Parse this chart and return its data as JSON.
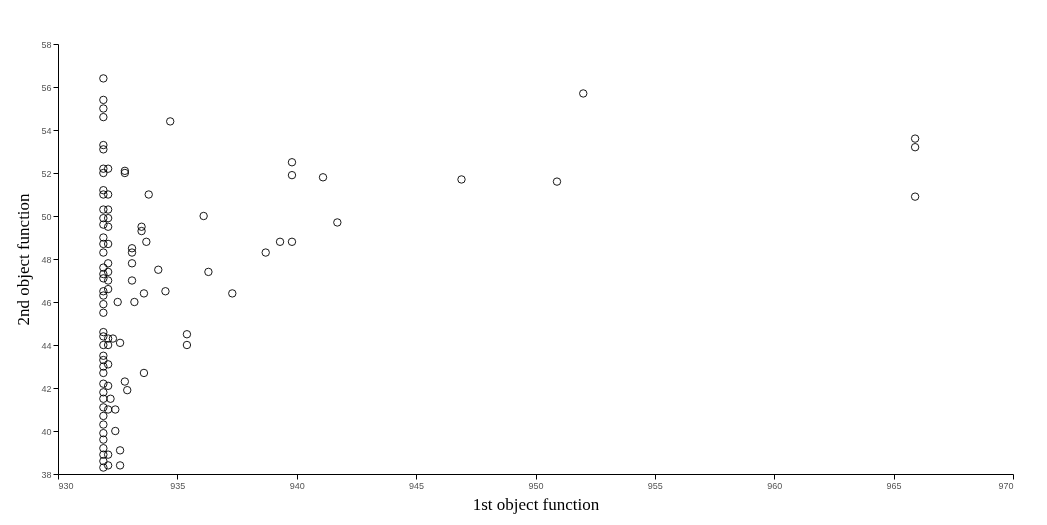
{
  "chart_data": {
    "type": "scatter",
    "xlabel": "1st object function",
    "ylabel": "2nd object function",
    "xlim": [
      930,
      970
    ],
    "xticks": [
      930,
      935,
      940,
      945,
      950,
      955,
      960,
      965,
      970
    ],
    "ylim": [
      38,
      58
    ],
    "yticks": [
      38,
      40,
      42,
      44,
      46,
      48,
      50,
      52,
      54,
      56,
      58
    ],
    "grid": false,
    "marker": "circle",
    "series": [
      {
        "color": "#000000",
        "x": [
          965.9,
          965.9,
          965.9,
          952.0,
          950.9,
          946.9,
          941.1,
          941.7,
          939.8,
          939.8,
          939.8,
          939.3,
          938.7,
          937.3,
          936.3,
          936.1,
          935.4,
          935.4,
          934.7,
          934.5,
          934.2,
          933.8,
          933.7,
          933.6,
          933.5,
          933.5,
          933.6,
          933.1,
          933.1,
          933.1,
          933.1,
          933.2,
          932.9,
          932.8,
          932.8,
          932.8,
          932.6,
          932.6,
          932.6,
          932.5,
          932.4,
          932.4,
          932.3,
          932.2,
          931.9,
          931.9,
          931.9,
          931.9,
          931.9,
          931.9,
          931.9,
          931.9,
          931.9,
          931.9,
          931.9,
          931.9,
          931.9,
          931.9,
          931.9,
          931.9,
          931.9,
          931.9,
          931.9,
          931.9,
          931.9,
          931.9,
          931.9,
          931.9,
          931.9,
          931.9,
          931.9,
          931.9,
          931.9,
          931.9,
          931.9,
          931.9,
          931.9,
          931.9,
          931.9,
          931.9,
          931.9,
          931.9,
          931.9,
          931.9,
          931.9,
          931.9,
          932.1,
          932.1,
          932.1,
          932.1,
          932.1,
          932.1,
          932.1,
          932.1,
          932.1,
          932.1,
          932.1,
          932.1,
          932.1,
          932.1,
          932.1,
          932.1,
          932.1
        ],
        "values": [
          53.6,
          53.2,
          50.9,
          55.7,
          51.6,
          51.7,
          51.8,
          49.7,
          52.5,
          51.9,
          48.8,
          48.8,
          48.3,
          46.4,
          47.4,
          50.0,
          44.5,
          44.0,
          54.4,
          46.5,
          47.5,
          51.0,
          48.8,
          46.4,
          49.3,
          49.5,
          42.7,
          48.5,
          48.3,
          47.8,
          47.0,
          46.0,
          41.9,
          42.3,
          52.0,
          52.1,
          44.1,
          39.1,
          38.4,
          46.0,
          41.0,
          40.0,
          44.3,
          41.5,
          56.4,
          55.4,
          55.0,
          54.6,
          53.3,
          53.1,
          52.2,
          52.0,
          51.2,
          51.0,
          50.3,
          49.9,
          49.6,
          49.0,
          48.7,
          48.3,
          47.6,
          47.3,
          47.1,
          46.5,
          46.3,
          45.9,
          45.5,
          44.6,
          44.4,
          44.0,
          43.5,
          43.3,
          43.0,
          42.7,
          42.2,
          41.8,
          41.5,
          41.1,
          40.7,
          40.3,
          39.9,
          39.6,
          39.2,
          38.9,
          38.6,
          38.3,
          52.2,
          51.0,
          50.3,
          49.9,
          49.5,
          48.7,
          47.8,
          47.4,
          47.0,
          46.6,
          44.3,
          44.0,
          43.1,
          42.1,
          41.0,
          38.9,
          38.4
        ]
      }
    ]
  }
}
